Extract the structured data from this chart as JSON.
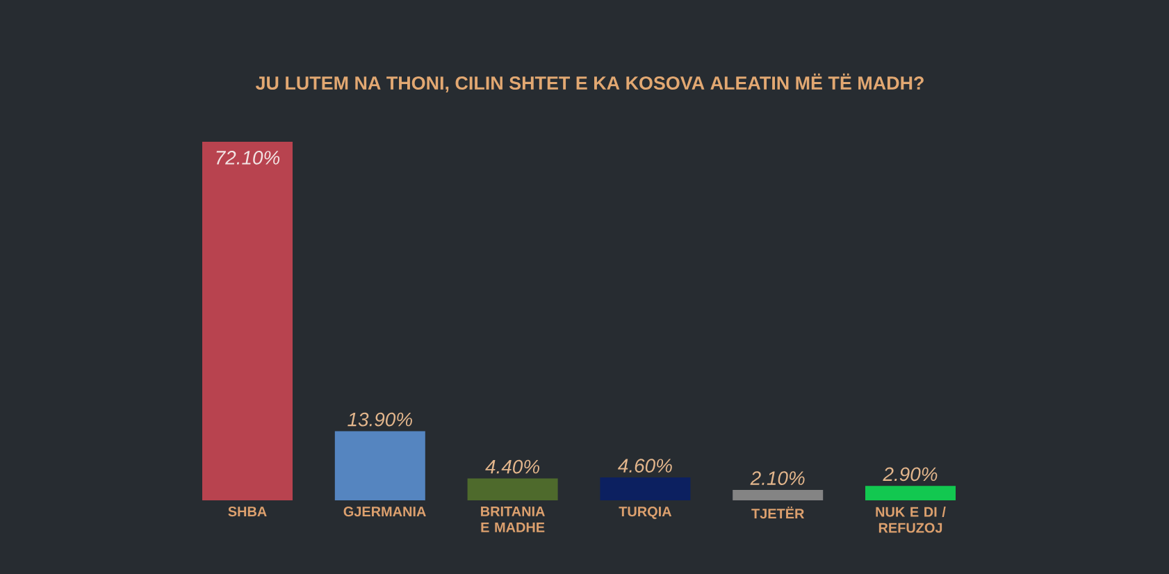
{
  "chart_data": {
    "type": "bar",
    "title": "JU LUTEM NA THONI, CILIN SHTET E KA KOSOVA ALEATIN MË TË MADH?",
    "categories": [
      "SHBA",
      "GJERMANIA",
      "BRITANIA E MADHE",
      "TURQIA",
      "TJETËR",
      "NUK E DI / REFUZOJ"
    ],
    "values": [
      72.1,
      13.9,
      4.4,
      4.6,
      2.1,
      2.9
    ],
    "colors": [
      "#b8434f",
      "#5585c0",
      "#4e6a2c",
      "#0c2060",
      "#848484",
      "#12c850"
    ],
    "value_labels": [
      "72.10%",
      "13.90%",
      "4.40%",
      "4.60%",
      "2.10%",
      "2.90%"
    ]
  }
}
